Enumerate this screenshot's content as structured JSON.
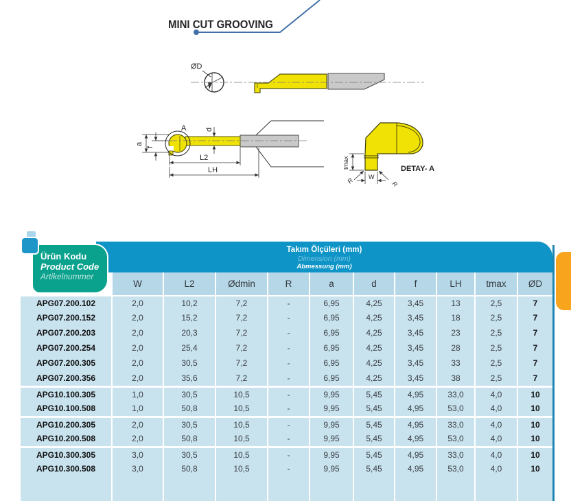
{
  "page": {
    "title": "MINI CUT GROOVING"
  },
  "colors": {
    "teal_header": "#0ba28d",
    "blue_header": "#0e94c6",
    "subheader_bg": "#b6d7e7",
    "body_bg": "#c8e2ee",
    "orange_tab": "#f8a51d",
    "tool_yellow": "#f0e205",
    "shank_gray": "#c9c9c9",
    "line_blue": "#4270a8"
  },
  "drawing": {
    "labels": {
      "od": "ØD",
      "detail_ref": "A",
      "a": "a",
      "f": "f",
      "d": "d",
      "l2": "L2",
      "lh": "LH",
      "tmax": "tmax",
      "w": "W",
      "r_left": "R",
      "r_right": "R",
      "detail_caption": "DETAY- A"
    }
  },
  "table": {
    "product_header": {
      "tr": "Ürün Kodu",
      "en": "Product Code",
      "de": "Artikelnummer"
    },
    "dim_header": {
      "tr": "Takım Ölçüleri (mm)",
      "en": "Dimension (mm)",
      "de": "Abmessung (mm)"
    },
    "columns": [
      "W",
      "L2",
      "Ødmin",
      "R",
      "a",
      "d",
      "f",
      "LH",
      "tmax",
      "ØD"
    ],
    "rows": [
      {
        "code": "APG07.200.102",
        "values": [
          "2,0",
          "10,2",
          "7,2",
          "-",
          "6,95",
          "4,25",
          "3,45",
          "13",
          "2,5",
          "7"
        ],
        "sep": false
      },
      {
        "code": "APG07.200.152",
        "values": [
          "2,0",
          "15,2",
          "7,2",
          "-",
          "6,95",
          "4,25",
          "3,45",
          "18",
          "2,5",
          "7"
        ],
        "sep": false
      },
      {
        "code": "APG07.200.203",
        "values": [
          "2,0",
          "20,3",
          "7,2",
          "-",
          "6,95",
          "4,25",
          "3,45",
          "23",
          "2,5",
          "7"
        ],
        "sep": false
      },
      {
        "code": "APG07.200.254",
        "values": [
          "2,0",
          "25,4",
          "7,2",
          "-",
          "6,95",
          "4,25",
          "3,45",
          "28",
          "2,5",
          "7"
        ],
        "sep": false
      },
      {
        "code": "APG07.200.305",
        "values": [
          "2,0",
          "30,5",
          "7,2",
          "-",
          "6,95",
          "4,25",
          "3,45",
          "33",
          "2,5",
          "7"
        ],
        "sep": false
      },
      {
        "code": "APG07.200.356",
        "values": [
          "2,0",
          "35,6",
          "7,2",
          "-",
          "6,95",
          "4,25",
          "3,45",
          "38",
          "2,5",
          "7"
        ],
        "sep": false
      },
      {
        "code": "APG10.100.305",
        "values": [
          "1,0",
          "30,5",
          "10,5",
          "-",
          "9,95",
          "5,45",
          "4,95",
          "33,0",
          "4,0",
          "10"
        ],
        "sep": true
      },
      {
        "code": "APG10.100.508",
        "values": [
          "1,0",
          "50,8",
          "10,5",
          "-",
          "9,95",
          "5,45",
          "4,95",
          "53,0",
          "4,0",
          "10"
        ],
        "sep": false
      },
      {
        "code": "APG10.200.305",
        "values": [
          "2,0",
          "30,5",
          "10,5",
          "-",
          "9,95",
          "5,45",
          "4,95",
          "33,0",
          "4,0",
          "10"
        ],
        "sep": true
      },
      {
        "code": "APG10.200.508",
        "values": [
          "2,0",
          "50,8",
          "10,5",
          "-",
          "9,95",
          "5,45",
          "4,95",
          "53,0",
          "4,0",
          "10"
        ],
        "sep": false
      },
      {
        "code": "APG10.300.305",
        "values": [
          "3,0",
          "30,5",
          "10,5",
          "-",
          "9,95",
          "5,45",
          "4,95",
          "33,0",
          "4,0",
          "10"
        ],
        "sep": true
      },
      {
        "code": "APG10.300.508",
        "values": [
          "3,0",
          "50,8",
          "10,5",
          "-",
          "9,95",
          "5,45",
          "4,95",
          "53,0",
          "4,0",
          "10"
        ],
        "sep": false
      }
    ]
  }
}
